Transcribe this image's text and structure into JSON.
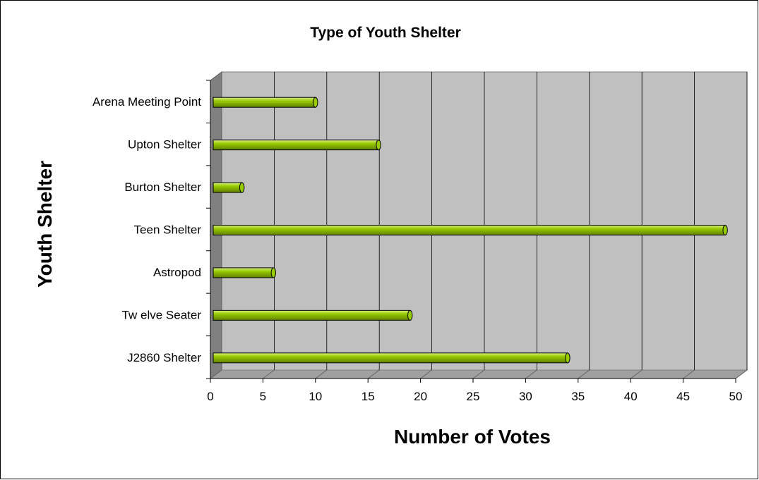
{
  "chart_data": {
    "type": "bar",
    "orientation": "horizontal",
    "title": "Type of Youth Shelter",
    "xlabel": "Number of Votes",
    "ylabel": "Youth Shelter",
    "categories": [
      "J2860 Shelter",
      "Tw elve Seater",
      "Astropod",
      "Teen Shelter",
      "Burton Shelter",
      "Upton Shelter",
      "Arena Meeting Point"
    ],
    "values": [
      34,
      19,
      6,
      49,
      3,
      16,
      10
    ],
    "xlim": [
      0,
      50
    ],
    "xticks": [
      "0",
      "5",
      "10",
      "15",
      "20",
      "25",
      "30",
      "35",
      "40",
      "45",
      "50"
    ],
    "grid": true,
    "legend": "none",
    "colors": {
      "bar_fill": "#99cc00",
      "bar_highlight": "#d9ef8a",
      "bar_shadow": "#5f8000",
      "plot_background": "#c0c0c0",
      "side_wall": "#808080"
    }
  }
}
